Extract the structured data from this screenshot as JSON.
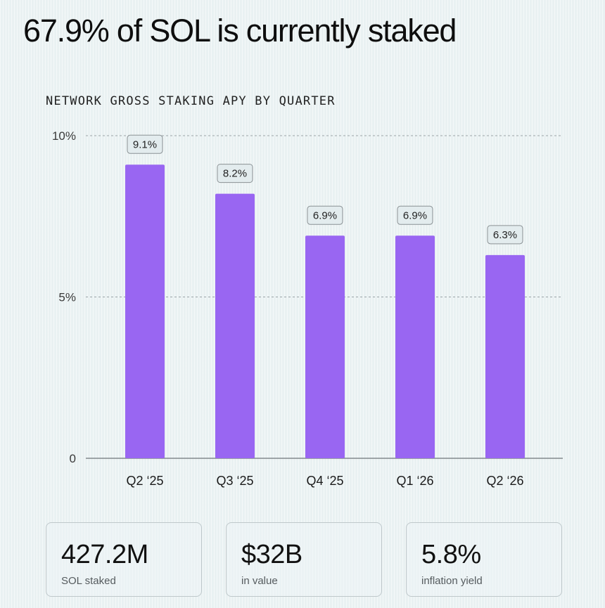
{
  "headline": "67.9% of SOL is currently staked",
  "colors": {
    "bar": "#9966f2",
    "grid": "#9aa3a6",
    "axis": "#6e7578",
    "label_box_fill": "#e3ecee",
    "label_box_stroke": "#8a9194"
  },
  "chart_data": {
    "type": "bar",
    "title": "NETWORK GROSS STAKING APY BY QUARTER",
    "xlabel": "",
    "ylabel": "",
    "categories": [
      "Q2 ‘25",
      "Q3 ‘25",
      "Q4 ‘25",
      "Q1 ‘26",
      "Q2 ‘26"
    ],
    "values": [
      9.1,
      8.2,
      6.9,
      6.9,
      6.3
    ],
    "data_labels": [
      "9.1%",
      "8.2%",
      "6.9%",
      "6.9%",
      "6.3%"
    ],
    "ylim": [
      0,
      10
    ],
    "y_ticks": [
      {
        "value": 0,
        "label": "0"
      },
      {
        "value": 5,
        "label": "5%"
      },
      {
        "value": 10,
        "label": "10%"
      }
    ],
    "grid": true,
    "legend": "none"
  },
  "stats": [
    {
      "value": "427.2M",
      "label": "SOL staked"
    },
    {
      "value": "$32B",
      "label": "in value"
    },
    {
      "value": "5.8%",
      "label": "inflation yield"
    }
  ]
}
